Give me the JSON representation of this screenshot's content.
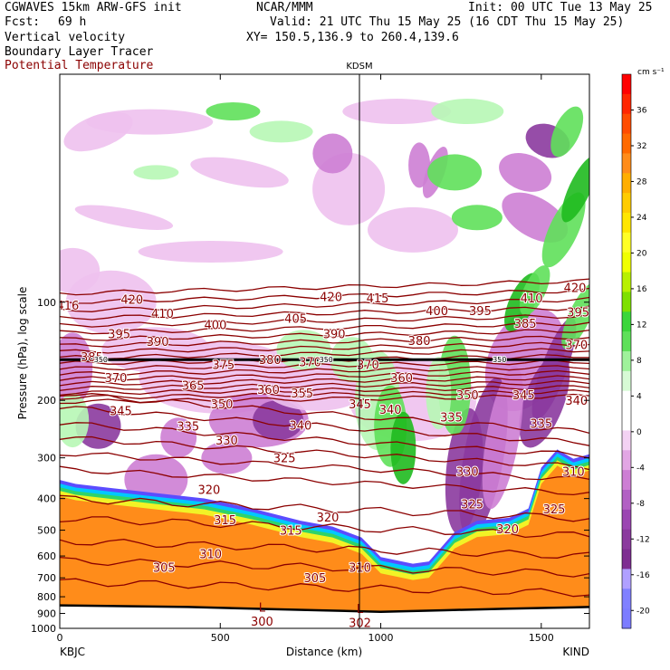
{
  "header": {
    "line1_left": "CGWAVES 15km ARW-GFS init",
    "line1_center": "NCAR/MMM",
    "line1_right": "Init: 00 UTC Tue 13 May 25",
    "fcst_label": "Fcst:",
    "fcst_value": "69 h",
    "valid": "Valid: 21 UTC Thu 15 May 25 (16 CDT Thu 15 May 25)",
    "field1": "Vertical velocity",
    "xy": "XY= 150.5,136.9 to 260.4,139.6",
    "field2": "Boundary Layer Tracer",
    "field3": "Potential Temperature"
  },
  "colors": {
    "theta": "#8b0000",
    "terrain_fill": "#ff8c1a"
  },
  "chart_data": {
    "type": "heatmap",
    "title": "Vertical velocity",
    "xlabel": "Distance (km)",
    "ylabel": "Pressure (hPa), log scale",
    "x_range": [
      0,
      1650
    ],
    "y_range_hpa": [
      1000,
      20
    ],
    "y_scale": "log",
    "x_ticks": [
      0,
      500,
      1000,
      1500
    ],
    "y_ticks": [
      100,
      200,
      300,
      400,
      500,
      600,
      700,
      800,
      900,
      1000
    ],
    "start_station": "KBJC",
    "end_station": "KIND",
    "station_marker": {
      "name": "KDSM",
      "x": 935
    },
    "colorbar": {
      "units": "cm s⁻¹",
      "levels": [
        36,
        32,
        28,
        24,
        20,
        16,
        12,
        8,
        4,
        0,
        -4,
        -8,
        -12,
        -16,
        -20
      ]
    },
    "theta_labels": [
      {
        "v": "420",
        "x": 225,
        "p": 98
      },
      {
        "v": "416",
        "x": 25,
        "p": 102
      },
      {
        "v": "410",
        "x": 320,
        "p": 108
      },
      {
        "v": "395",
        "x": 185,
        "p": 125
      },
      {
        "v": "390",
        "x": 305,
        "p": 132
      },
      {
        "v": "400",
        "x": 485,
        "p": 117
      },
      {
        "v": "405",
        "x": 735,
        "p": 112
      },
      {
        "v": "390",
        "x": 855,
        "p": 125
      },
      {
        "v": "420",
        "x": 845,
        "p": 96
      },
      {
        "v": "415",
        "x": 990,
        "p": 97
      },
      {
        "v": "400",
        "x": 1175,
        "p": 106
      },
      {
        "v": "395",
        "x": 1310,
        "p": 106
      },
      {
        "v": "410",
        "x": 1470,
        "p": 97
      },
      {
        "v": "420",
        "x": 1605,
        "p": 90
      },
      {
        "v": "395",
        "x": 1615,
        "p": 107
      },
      {
        "v": "385",
        "x": 1450,
        "p": 116
      },
      {
        "v": "380",
        "x": 1120,
        "p": 131
      },
      {
        "v": "370",
        "x": 1610,
        "p": 135
      },
      {
        "v": "385",
        "x": 100,
        "p": 147
      },
      {
        "v": "370",
        "x": 175,
        "p": 170
      },
      {
        "v": "375",
        "x": 510,
        "p": 155
      },
      {
        "v": "380",
        "x": 655,
        "p": 150
      },
      {
        "v": "370",
        "x": 780,
        "p": 152
      },
      {
        "v": "370",
        "x": 960,
        "p": 155
      },
      {
        "v": "365",
        "x": 415,
        "p": 180
      },
      {
        "v": "360",
        "x": 650,
        "p": 185
      },
      {
        "v": "360",
        "x": 1065,
        "p": 170
      },
      {
        "v": "355",
        "x": 755,
        "p": 190
      },
      {
        "v": "350",
        "x": 505,
        "p": 205
      },
      {
        "v": "350",
        "x": 1270,
        "p": 192
      },
      {
        "v": "345",
        "x": 1445,
        "p": 192
      },
      {
        "v": "340",
        "x": 1610,
        "p": 200
      },
      {
        "v": "345",
        "x": 190,
        "p": 215
      },
      {
        "v": "345",
        "x": 935,
        "p": 205
      },
      {
        "v": "340",
        "x": 1030,
        "p": 213
      },
      {
        "v": "335",
        "x": 1220,
        "p": 225
      },
      {
        "v": "335",
        "x": 400,
        "p": 240
      },
      {
        "v": "340",
        "x": 750,
        "p": 238
      },
      {
        "v": "335",
        "x": 1500,
        "p": 235
      },
      {
        "v": "330",
        "x": 520,
        "p": 265
      },
      {
        "v": "325",
        "x": 700,
        "p": 300
      },
      {
        "v": "330",
        "x": 1270,
        "p": 330
      },
      {
        "v": "310",
        "x": 1600,
        "p": 330
      },
      {
        "v": "320",
        "x": 465,
        "p": 375
      },
      {
        "v": "325",
        "x": 1285,
        "p": 415
      },
      {
        "v": "325",
        "x": 1540,
        "p": 430
      },
      {
        "v": "320",
        "x": 835,
        "p": 455
      },
      {
        "v": "315",
        "x": 515,
        "p": 465
      },
      {
        "v": "315",
        "x": 720,
        "p": 500
      },
      {
        "v": "320",
        "x": 1395,
        "p": 495
      },
      {
        "v": "310",
        "x": 470,
        "p": 590
      },
      {
        "v": "310",
        "x": 935,
        "p": 650
      },
      {
        "v": "305",
        "x": 325,
        "p": 650
      },
      {
        "v": "305",
        "x": 795,
        "p": 700
      },
      {
        "v": "300",
        "x": 630,
        "p": 950
      },
      {
        "v": "302",
        "x": 935,
        "p": 960
      }
    ],
    "low_markers": [
      {
        "label": "L",
        "x": 630,
        "p": 860
      },
      {
        "label": "L",
        "x": 935,
        "p": 870
      }
    ],
    "tropopause_labels": [
      {
        "v": "350",
        "x": 128,
        "p": 150
      },
      {
        "v": "350",
        "x": 830,
        "p": 150
      },
      {
        "v": "350",
        "x": 1370,
        "p": 150
      }
    ]
  }
}
